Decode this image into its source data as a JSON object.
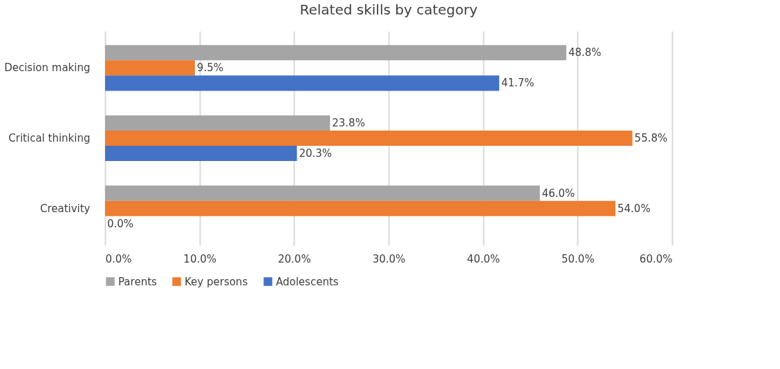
{
  "chart_data": {
    "type": "bar",
    "orientation": "horizontal",
    "title": "Related skills by category",
    "categories": [
      "Decision making",
      "Critical thinking",
      "Creativity"
    ],
    "series": [
      {
        "name": "Parents",
        "color": "#a5a5a5",
        "values": [
          48.8,
          23.8,
          46.0
        ],
        "value_labels": [
          "48.8%",
          "23.8%",
          "46.0%"
        ]
      },
      {
        "name": "Key persons",
        "color": "#ed7d31",
        "values": [
          9.5,
          55.8,
          54.0
        ],
        "value_labels": [
          "9.5%",
          "55.8%",
          "54.0%"
        ]
      },
      {
        "name": "Adolescents",
        "color": "#4472c4",
        "values": [
          41.7,
          20.3,
          0.0
        ],
        "value_labels": [
          "41.7%",
          "20.3%",
          "0.0%"
        ]
      }
    ],
    "xlim": [
      0,
      60
    ],
    "xticks": [
      {
        "value": 0,
        "label": "0.0%"
      },
      {
        "value": 10,
        "label": "10.0%"
      },
      {
        "value": 20,
        "label": "20.0%"
      },
      {
        "value": 30,
        "label": "30.0%"
      },
      {
        "value": 40,
        "label": "40.0%"
      },
      {
        "value": 50,
        "label": "50.0%"
      },
      {
        "value": 60,
        "label": "60.0%"
      }
    ],
    "grid": "x",
    "legend": "bottom"
  }
}
